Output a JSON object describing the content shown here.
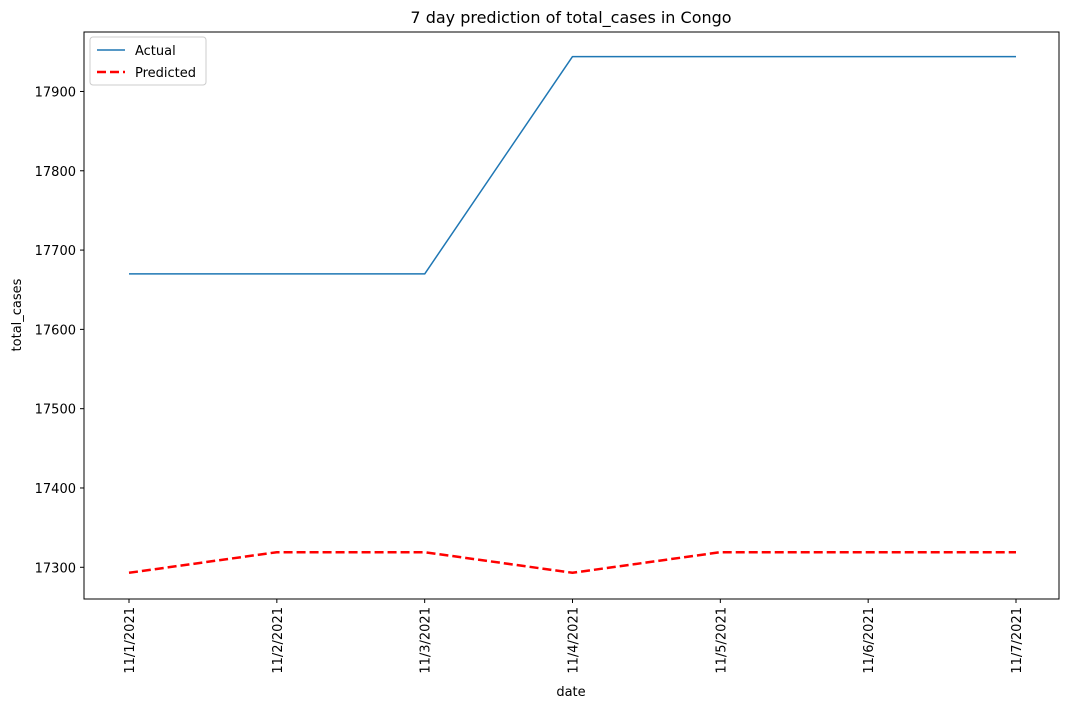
{
  "chart_data": {
    "type": "line",
    "title": "7 day prediction of total_cases in Congo",
    "xlabel": "date",
    "ylabel": "total_cases",
    "categories": [
      "11/1/2021",
      "11/2/2021",
      "11/3/2021",
      "11/4/2021",
      "11/5/2021",
      "11/6/2021",
      "11/7/2021"
    ],
    "ylim": [
      17260,
      17975
    ],
    "yticks": [
      17300,
      17400,
      17500,
      17600,
      17700,
      17800,
      17900
    ],
    "grid": false,
    "legend_position": "top-left",
    "series": [
      {
        "name": "Actual",
        "color": "#1f77b4",
        "style": "solid",
        "values": [
          17670,
          17670,
          17670,
          17944,
          17944,
          17944,
          17944
        ]
      },
      {
        "name": "Predicted",
        "color": "#ff0000",
        "style": "dashed",
        "values": [
          17293,
          17319,
          17319,
          17293,
          17319,
          17319,
          17319
        ]
      }
    ]
  }
}
